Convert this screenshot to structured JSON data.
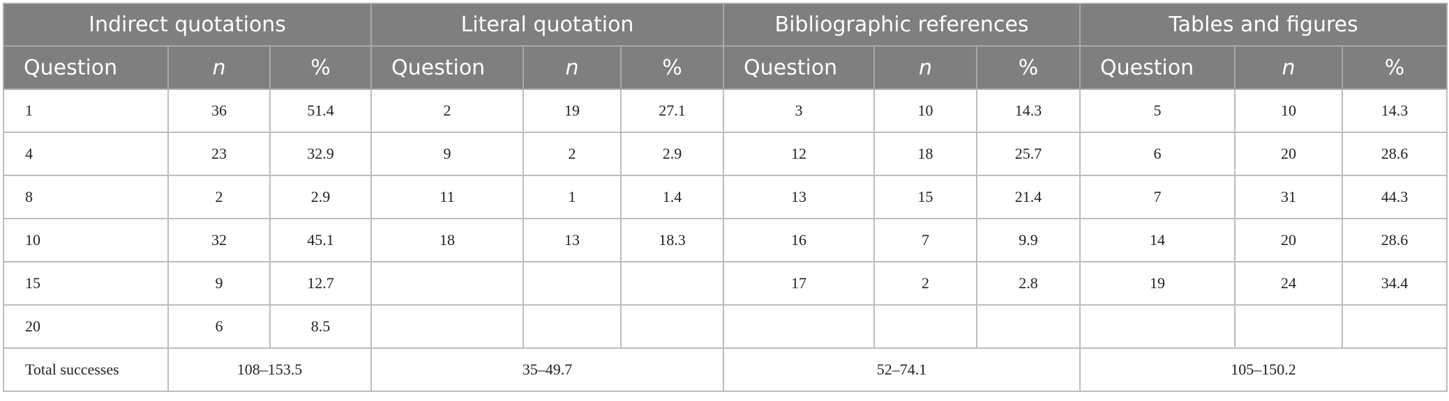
{
  "table": {
    "total_label": "Total successes",
    "groups": [
      {
        "title": "Indirect quotations",
        "columns": [
          "Question",
          "n",
          "%"
        ],
        "rows": [
          [
            1,
            36,
            51.4
          ],
          [
            4,
            23,
            32.9
          ],
          [
            8,
            2,
            2.9
          ],
          [
            10,
            32,
            45.1
          ],
          [
            15,
            9,
            12.7
          ],
          [
            20,
            6,
            8.5
          ]
        ],
        "total": "108–153.5"
      },
      {
        "title": "Literal quotation",
        "columns": [
          "Question",
          "n",
          "%"
        ],
        "rows": [
          [
            2,
            19,
            27.1
          ],
          [
            9,
            2,
            2.9
          ],
          [
            11,
            1,
            1.4
          ],
          [
            18,
            13,
            18.3
          ]
        ],
        "total": "35–49.7"
      },
      {
        "title": "Bibliographic references",
        "columns": [
          "Question",
          "n",
          "%"
        ],
        "rows": [
          [
            3,
            10,
            14.3
          ],
          [
            12,
            18,
            25.7
          ],
          [
            13,
            15,
            21.4
          ],
          [
            16,
            7,
            9.9
          ],
          [
            17,
            2,
            2.8
          ]
        ],
        "total": "52–74.1"
      },
      {
        "title": "Tables and figures",
        "columns": [
          "Question",
          "n",
          "%"
        ],
        "rows": [
          [
            5,
            10,
            14.3
          ],
          [
            6,
            20,
            28.6
          ],
          [
            7,
            31,
            44.3
          ],
          [
            14,
            20,
            28.6
          ],
          [
            19,
            24,
            34.4
          ]
        ],
        "total": "105–150.2"
      }
    ]
  }
}
